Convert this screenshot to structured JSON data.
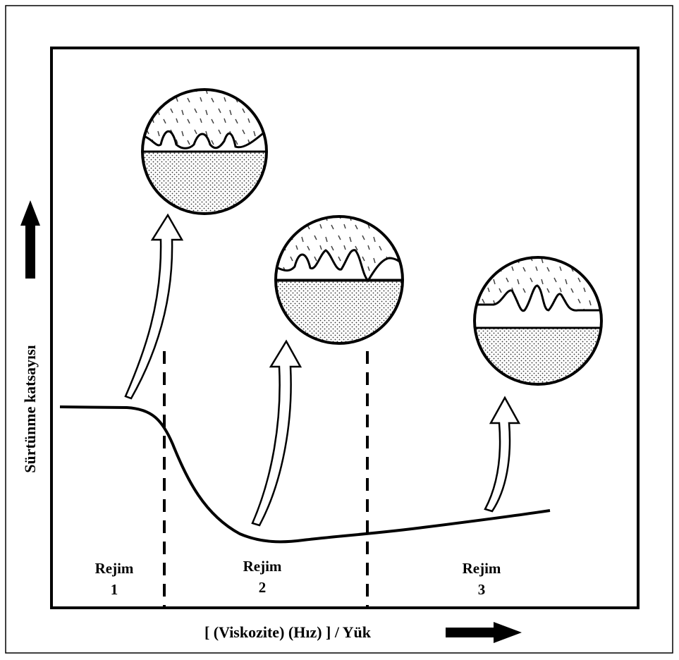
{
  "axes": {
    "y_label": "Sürtünme katsayısı",
    "x_label": "[ (Viskozite) (Hız) ] / Yük"
  },
  "regimes": [
    {
      "label": "Rejim",
      "number": "1"
    },
    {
      "label": "Rejim",
      "number": "2"
    },
    {
      "label": "Rejim",
      "number": "3"
    }
  ]
}
